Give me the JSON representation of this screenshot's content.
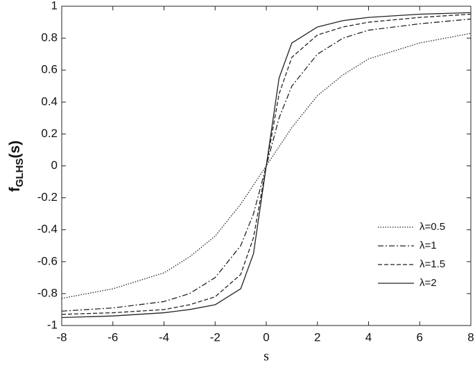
{
  "chart_data": {
    "type": "line",
    "xlabel": "s",
    "ylabel": {
      "base": "f",
      "subscript": "GLHS",
      "suffix": "(s)"
    },
    "x": [
      -8,
      -6,
      -4,
      -3,
      -2,
      -1,
      -0.5,
      0,
      0.5,
      1,
      2,
      3,
      4,
      6,
      8
    ],
    "series": [
      {
        "name": "λ=0.5",
        "color": "#222222",
        "style": "dotted",
        "values": [
          -0.83,
          -0.77,
          -0.67,
          -0.57,
          -0.44,
          -0.24,
          -0.12,
          0,
          0.12,
          0.24,
          0.44,
          0.57,
          0.67,
          0.77,
          0.83
        ]
      },
      {
        "name": "λ=1",
        "color": "#222222",
        "style": "dashdot",
        "values": [
          -0.91,
          -0.89,
          -0.85,
          -0.8,
          -0.7,
          -0.5,
          -0.3,
          0,
          0.3,
          0.5,
          0.7,
          0.8,
          0.85,
          0.89,
          0.92
        ]
      },
      {
        "name": "λ=1.5",
        "color": "#222222",
        "style": "dashed",
        "values": [
          -0.93,
          -0.92,
          -0.9,
          -0.87,
          -0.82,
          -0.68,
          -0.45,
          0,
          0.45,
          0.68,
          0.82,
          0.87,
          0.9,
          0.93,
          0.95
        ]
      },
      {
        "name": "λ=2",
        "color": "#222222",
        "style": "solid",
        "values": [
          -0.95,
          -0.94,
          -0.92,
          -0.9,
          -0.87,
          -0.77,
          -0.55,
          0,
          0.55,
          0.77,
          0.87,
          0.91,
          0.93,
          0.95,
          0.96
        ]
      }
    ],
    "xlim": [
      -8,
      8
    ],
    "xticks": [
      -8,
      -6,
      -4,
      -2,
      0,
      2,
      4,
      6,
      8
    ],
    "ylim": [
      -1,
      1
    ],
    "yticks": [
      -1,
      -0.8,
      -0.6,
      -0.4,
      -0.2,
      0,
      0.2,
      0.4,
      0.6,
      0.8,
      1
    ],
    "grid": false,
    "legend": "lower right"
  }
}
